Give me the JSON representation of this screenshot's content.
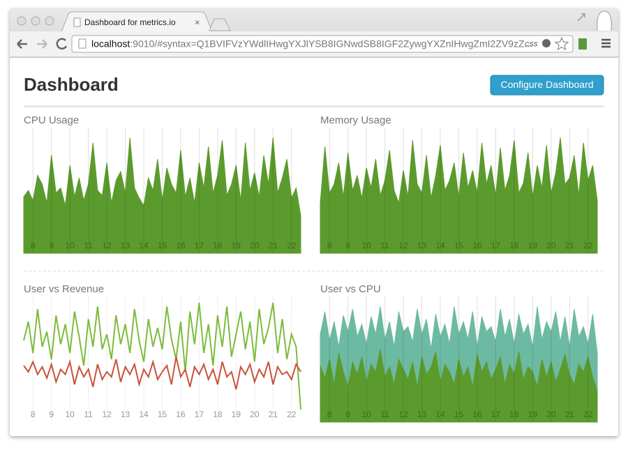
{
  "browser": {
    "tab_title": "Dashboard for metrics.io",
    "url_host": "localhost",
    "url_rest": ":9010/#syntax=Q1BVIFVzYWdlIHwgYXJlYSB8IGNwdSB8IGF2ZywgYXZnIHwgZmI2ZV9zZ...",
    "extension_label": "CSS"
  },
  "page": {
    "heading": "Dashboard",
    "button": "Configure Dashboard"
  },
  "chart_data": [
    {
      "type": "area",
      "title": "CPU Usage",
      "xlim": [
        7.5,
        22.5
      ],
      "ylim": [
        0,
        100
      ],
      "xticks": [
        8,
        9,
        10,
        11,
        12,
        13,
        14,
        15,
        16,
        17,
        18,
        19,
        20,
        21,
        22
      ],
      "grid": true,
      "x": [
        7.5,
        7.75,
        8,
        8.25,
        8.5,
        8.75,
        9,
        9.25,
        9.5,
        9.75,
        10,
        10.25,
        10.5,
        10.75,
        11,
        11.25,
        11.5,
        11.75,
        12,
        12.25,
        12.5,
        12.75,
        13,
        13.25,
        13.5,
        13.75,
        14,
        14.25,
        14.5,
        14.75,
        15,
        15.25,
        15.5,
        15.75,
        16,
        16.25,
        16.5,
        16.75,
        17,
        17.25,
        17.5,
        17.75,
        18,
        18.25,
        18.5,
        18.75,
        19,
        19.25,
        19.5,
        19.75,
        20,
        20.25,
        20.5,
        20.75,
        21,
        21.25,
        21.5,
        21.75,
        22,
        22.25,
        22.5
      ],
      "series": [
        {
          "color": "#5b9b2d",
          "values": [
            45,
            50,
            42,
            62,
            55,
            40,
            78,
            48,
            52,
            38,
            70,
            45,
            60,
            42,
            55,
            88,
            50,
            46,
            72,
            40,
            58,
            65,
            48,
            92,
            52,
            44,
            38,
            60,
            50,
            75,
            42,
            68,
            55,
            48,
            82,
            45,
            60,
            40,
            72,
            52,
            85,
            48,
            62,
            90,
            46,
            55,
            70,
            42,
            88,
            50,
            64,
            45,
            78,
            55,
            92,
            48,
            60,
            75,
            44,
            52,
            30
          ]
        }
      ]
    },
    {
      "type": "area",
      "title": "Memory Usage",
      "xlim": [
        7.5,
        22.5
      ],
      "ylim": [
        0,
        100
      ],
      "xticks": [
        8,
        9,
        10,
        11,
        12,
        13,
        14,
        15,
        16,
        17,
        18,
        19,
        20,
        21,
        22
      ],
      "grid": true,
      "x": [
        7.5,
        7.75,
        8,
        8.25,
        8.5,
        8.75,
        9,
        9.25,
        9.5,
        9.75,
        10,
        10.25,
        10.5,
        10.75,
        11,
        11.25,
        11.5,
        11.75,
        12,
        12.25,
        12.5,
        12.75,
        13,
        13.25,
        13.5,
        13.75,
        14,
        14.25,
        14.5,
        14.75,
        15,
        15.25,
        15.5,
        15.75,
        16,
        16.25,
        16.5,
        16.75,
        17,
        17.25,
        17.5,
        17.75,
        18,
        18.25,
        18.5,
        18.75,
        19,
        19.25,
        19.5,
        19.75,
        20,
        20.25,
        20.5,
        20.75,
        21,
        21.25,
        21.5,
        21.75,
        22,
        22.25,
        22.5
      ],
      "series": [
        {
          "color": "#5b9b2d",
          "values": [
            40,
            85,
            48,
            55,
            72,
            45,
            80,
            50,
            62,
            44,
            68,
            52,
            75,
            46,
            58,
            82,
            50,
            40,
            66,
            45,
            90,
            55,
            48,
            78,
            44,
            62,
            86,
            50,
            58,
            72,
            45,
            80,
            52,
            66,
            48,
            88,
            55,
            70,
            46,
            84,
            50,
            62,
            90,
            48,
            56,
            80,
            45,
            70,
            52,
            86,
            48,
            64,
            92,
            55,
            60,
            78,
            46,
            88,
            58,
            70,
            42
          ]
        }
      ]
    },
    {
      "type": "line",
      "title": "User vs Revenue",
      "xlim": [
        7.5,
        22.5
      ],
      "ylim": [
        0,
        100
      ],
      "xticks": [
        8,
        9,
        10,
        11,
        12,
        13,
        14,
        15,
        16,
        17,
        18,
        19,
        20,
        21,
        22
      ],
      "grid": true,
      "x": [
        7.5,
        7.75,
        8,
        8.25,
        8.5,
        8.75,
        9,
        9.25,
        9.5,
        9.75,
        10,
        10.25,
        10.5,
        10.75,
        11,
        11.25,
        11.5,
        11.75,
        12,
        12.25,
        12.5,
        12.75,
        13,
        13.25,
        13.5,
        13.75,
        14,
        14.25,
        14.5,
        14.75,
        15,
        15.25,
        15.5,
        15.75,
        16,
        16.25,
        16.5,
        16.75,
        17,
        17.25,
        17.5,
        17.75,
        18,
        18.25,
        18.5,
        18.75,
        19,
        19.25,
        19.5,
        19.75,
        20,
        20.25,
        20.5,
        20.75,
        21,
        21.25,
        21.5,
        21.75,
        22,
        22.25,
        22.5
      ],
      "series": [
        {
          "color": "#7cbb3c",
          "values": [
            65,
            80,
            55,
            90,
            60,
            72,
            50,
            85,
            62,
            78,
            55,
            88,
            68,
            45,
            82,
            60,
            92,
            58,
            70,
            50,
            85,
            62,
            78,
            55,
            90,
            65,
            48,
            82,
            60,
            75,
            58,
            92,
            66,
            50,
            80,
            40,
            88,
            62,
            95,
            55,
            78,
            45,
            85,
            60,
            92,
            52,
            70,
            88,
            58,
            80,
            48,
            90,
            62,
            75,
            95,
            55,
            82,
            50,
            70,
            60,
            10
          ]
        },
        {
          "color": "#c8523b",
          "values": [
            45,
            40,
            48,
            38,
            44,
            35,
            46,
            32,
            42,
            38,
            48,
            30,
            44,
            36,
            42,
            28,
            46,
            34,
            40,
            36,
            50,
            32,
            44,
            38,
            46,
            30,
            42,
            36,
            48,
            34,
            40,
            45,
            30,
            52,
            36,
            42,
            28,
            44,
            38,
            46,
            34,
            42,
            30,
            48,
            36,
            40,
            26,
            44,
            38,
            46,
            32,
            42,
            36,
            48,
            30,
            44,
            38,
            40,
            34,
            46,
            40
          ]
        }
      ]
    },
    {
      "type": "area",
      "title": "User vs CPU",
      "xlim": [
        7.5,
        22.5
      ],
      "ylim": [
        0,
        100
      ],
      "xticks": [
        8,
        9,
        10,
        11,
        12,
        13,
        14,
        15,
        16,
        17,
        18,
        19,
        20,
        21,
        22
      ],
      "grid": true,
      "x": [
        7.5,
        7.75,
        8,
        8.25,
        8.5,
        8.75,
        9,
        9.25,
        9.5,
        9.75,
        10,
        10.25,
        10.5,
        10.75,
        11,
        11.25,
        11.5,
        11.75,
        12,
        12.25,
        12.5,
        12.75,
        13,
        13.25,
        13.5,
        13.75,
        14,
        14.25,
        14.5,
        14.75,
        15,
        15.25,
        15.5,
        15.75,
        16,
        16.25,
        16.5,
        16.75,
        17,
        17.25,
        17.5,
        17.75,
        18,
        18.25,
        18.5,
        18.75,
        19,
        19.25,
        19.5,
        19.75,
        20,
        20.25,
        20.5,
        20.75,
        21,
        21.25,
        21.5,
        21.75,
        22,
        22.25,
        22.5
      ],
      "series": [
        {
          "color": "#6dbaa3",
          "values": [
            70,
            88,
            65,
            80,
            60,
            85,
            72,
            90,
            68,
            78,
            62,
            84,
            70,
            92,
            66,
            80,
            60,
            88,
            72,
            76,
            64,
            90,
            70,
            82,
            58,
            86,
            68,
            78,
            62,
            92,
            70,
            80,
            66,
            88,
            60,
            84,
            72,
            76,
            64,
            90,
            68,
            82,
            62,
            86,
            70,
            78,
            60,
            92,
            66,
            80,
            72,
            88,
            64,
            84,
            60,
            90,
            68,
            76,
            62,
            86,
            55
          ]
        },
        {
          "color": "#5b9b2d",
          "values": [
            45,
            35,
            50,
            30,
            55,
            40,
            28,
            48,
            38,
            52,
            32,
            46,
            40,
            58,
            36,
            44,
            30,
            50,
            42,
            34,
            48,
            28,
            52,
            38,
            44,
            56,
            32,
            46,
            40,
            30,
            50,
            36,
            44,
            28,
            54,
            40,
            48,
            34,
            42,
            52,
            30,
            46,
            38,
            56,
            34,
            44,
            40,
            28,
            50,
            36,
            48,
            32,
            42,
            54,
            38,
            30,
            46,
            40,
            52,
            36,
            25
          ]
        }
      ]
    }
  ]
}
